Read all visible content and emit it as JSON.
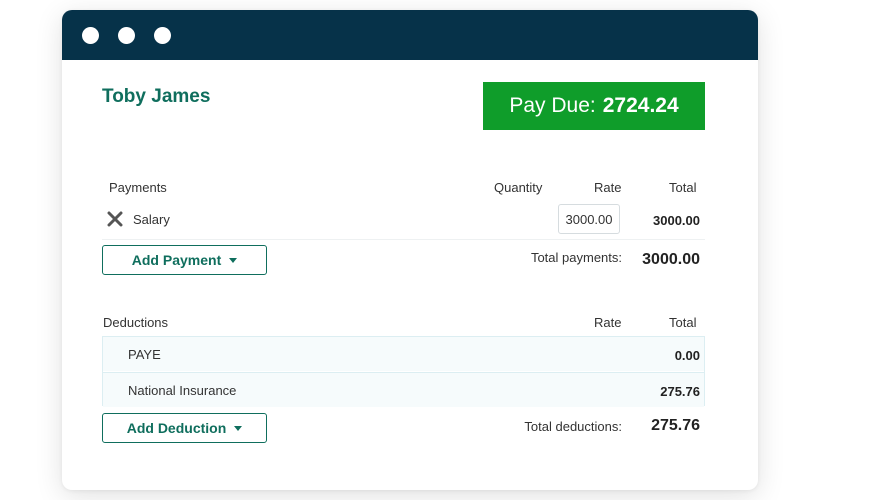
{
  "employee": {
    "name": "Toby James"
  },
  "pay_due": {
    "label": "Pay Due:",
    "amount": "2724.24"
  },
  "payments": {
    "headers": {
      "item": "Payments",
      "quantity": "Quantity",
      "rate": "Rate",
      "total": "Total"
    },
    "rows": [
      {
        "name": "Salary",
        "rate": "3000.00",
        "total": "3000.00"
      }
    ],
    "add_button": "Add Payment",
    "total_label": "Total payments:",
    "total_value": "3000.00"
  },
  "deductions": {
    "headers": {
      "item": "Deductions",
      "rate": "Rate",
      "total": "Total"
    },
    "rows": [
      {
        "name": "PAYE",
        "total": "0.00"
      },
      {
        "name": "National Insurance",
        "total": "275.76"
      }
    ],
    "add_button": "Add Deduction",
    "total_label": "Total deductions:",
    "total_value": "275.76"
  },
  "colors": {
    "titlebar": "#063249",
    "accent_green": "#0f6e5d",
    "pay_due_bg": "#0f9d2a"
  },
  "icons": {
    "remove_row": "close-x-icon",
    "dropdown": "caret-down-icon"
  }
}
